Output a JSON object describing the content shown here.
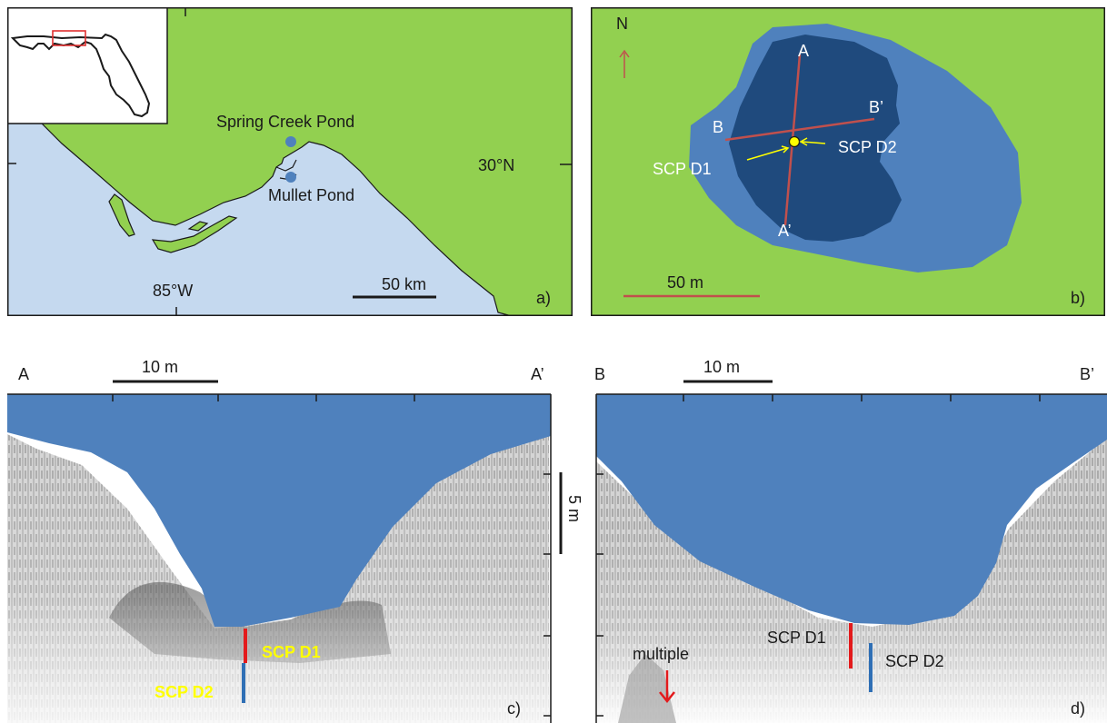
{
  "panel_a": {
    "inset_label": "",
    "site1": "Spring Creek Pond",
    "site2": "Mullet Pond",
    "lat_label": "30°N",
    "lon_label": "85°W",
    "scale_label": "50 km",
    "panel_letter": "a)",
    "colors": {
      "land": "#92d050",
      "sea": "#c5d9ef",
      "site": "#4f81bd",
      "inset_box": "#e03030"
    }
  },
  "panel_b": {
    "north_label": "N",
    "point_a": "A",
    "point_a_prime": "A’",
    "point_b": "B",
    "point_b_prime": "B’",
    "core1": "SCP D1",
    "core2": "SCP D2",
    "scale_label": "50 m",
    "panel_letter": "b)",
    "colors": {
      "land": "#92d050",
      "shallow": "#4f81bd",
      "deep": "#1f4a7d",
      "transect": "#c0504d",
      "core": "#ffff00"
    }
  },
  "panel_c": {
    "left_end": "A",
    "right_end": "A’",
    "scale_h": "10 m",
    "scale_v": "5 m",
    "core1": "SCP D1",
    "core2": "SCP D2",
    "panel_letter": "c)",
    "colors": {
      "water": "#4f81bd",
      "core1": "#e31a1c",
      "core2": "#2f6fb5",
      "core_label": "#ffff00"
    }
  },
  "panel_d": {
    "left_end": "B",
    "right_end": "B’",
    "scale_h": "10 m",
    "core1": "SCP D1",
    "core2": "SCP D2",
    "multiple_label": "multiple",
    "panel_letter": "d)",
    "colors": {
      "water": "#4f81bd",
      "core1": "#e31a1c",
      "core2": "#2f6fb5",
      "arrow": "#e31a1c"
    }
  }
}
